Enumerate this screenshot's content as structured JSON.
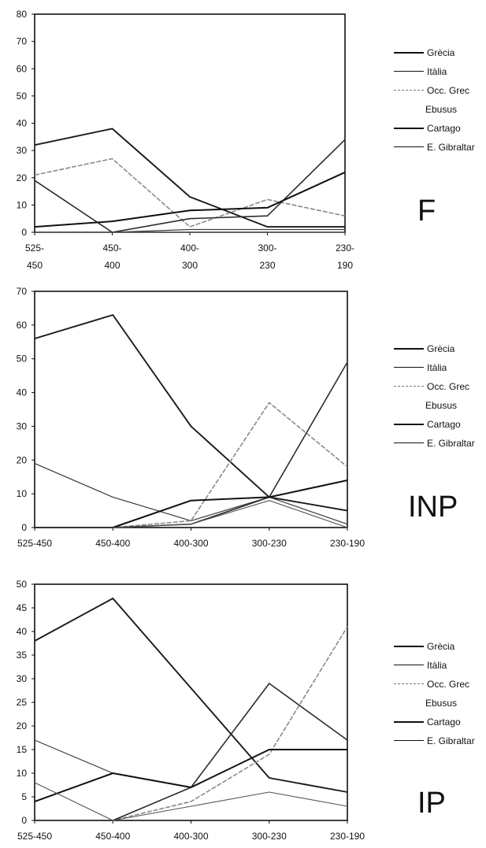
{
  "colors": {
    "Grècia": "#1a1a1a",
    "Itàlia": "#3a3a3a",
    "Occ. Grec": "#8a8a8a",
    "Ebusus": "#2b2b2b",
    "Cartago": "#111111",
    "E. Gibraltar": "#555555"
  },
  "chart_data": [
    {
      "type": "line",
      "panel_label": "F",
      "categories": [
        "525-\n450",
        "450-\n400",
        "400-\n300",
        "300-\n230",
        "230-\n190"
      ],
      "yticks": [
        0,
        10,
        20,
        30,
        40,
        50,
        60,
        70,
        80
      ],
      "ylim": [
        0,
        80
      ],
      "legend": [
        "Grècia",
        "Itàlia",
        "Occ. Grec",
        "Ebusus",
        "Cartago",
        "E. Gibraltar"
      ],
      "series": [
        {
          "name": "Grècia",
          "values": [
            32,
            38,
            13,
            2,
            2
          ]
        },
        {
          "name": "Itàlia",
          "values": [
            0,
            0,
            1,
            1,
            1
          ]
        },
        {
          "name": "Occ. Grec",
          "values": [
            21,
            27,
            2,
            12,
            6
          ]
        },
        {
          "name": "Ebusus",
          "values": [
            19,
            0,
            5,
            6,
            34
          ]
        },
        {
          "name": "Cartago",
          "values": [
            2,
            4,
            8,
            9,
            22
          ]
        },
        {
          "name": "E. Gibraltar",
          "values": [
            0,
            0,
            0,
            0,
            0
          ]
        }
      ]
    },
    {
      "type": "line",
      "panel_label": "INP",
      "categories": [
        "525-450",
        "450-400",
        "400-300",
        "300-230",
        "230-190"
      ],
      "yticks": [
        0,
        10,
        20,
        30,
        40,
        50,
        60,
        70
      ],
      "ylim": [
        0,
        70
      ],
      "legend": [
        "Grècia",
        "Itàlia",
        "Occ. Grec",
        "Ebusus",
        "Cartago",
        "E. Gibraltar"
      ],
      "series": [
        {
          "name": "Grècia",
          "values": [
            56,
            63,
            30,
            9,
            5
          ]
        },
        {
          "name": "Itàlia",
          "values": [
            19,
            9,
            2,
            9,
            1
          ]
        },
        {
          "name": "Occ. Grec",
          "values": [
            0,
            0,
            2,
            37,
            18
          ]
        },
        {
          "name": "Ebusus",
          "values": [
            0,
            0,
            1,
            9,
            49
          ]
        },
        {
          "name": "Cartago",
          "values": [
            0,
            0,
            8,
            9,
            14
          ]
        },
        {
          "name": "E. Gibraltar",
          "values": [
            0,
            0,
            1,
            8,
            0
          ]
        }
      ]
    },
    {
      "type": "line",
      "panel_label": "IP",
      "categories": [
        "525-450",
        "450-400",
        "400-300",
        "300-230",
        "230-190"
      ],
      "yticks": [
        0,
        5,
        10,
        15,
        20,
        25,
        30,
        35,
        40,
        45,
        50
      ],
      "ylim": [
        0,
        50
      ],
      "legend": [
        "Grècia",
        "Itàlia",
        "Occ. Grec",
        "Ebusus",
        "Cartago",
        "E. Gibraltar"
      ],
      "series": [
        {
          "name": "Grècia",
          "values": [
            38,
            47,
            28,
            9,
            6
          ]
        },
        {
          "name": "Itàlia",
          "values": [
            17,
            10,
            7,
            15,
            15
          ]
        },
        {
          "name": "Occ. Grec",
          "values": [
            0,
            0,
            4,
            14,
            41
          ]
        },
        {
          "name": "Ebusus",
          "values": [
            0,
            0,
            7,
            29,
            17
          ]
        },
        {
          "name": "Cartago",
          "values": [
            4,
            10,
            7,
            15,
            15
          ]
        },
        {
          "name": "E. Gibraltar",
          "values": [
            8,
            0,
            3,
            6,
            3
          ]
        }
      ]
    }
  ]
}
